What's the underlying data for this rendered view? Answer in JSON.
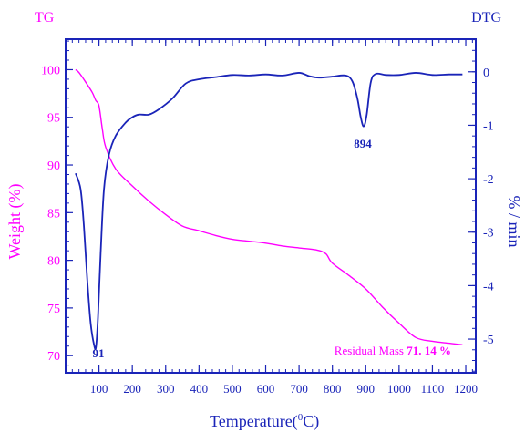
{
  "chart_data": {
    "type": "line",
    "labels": {
      "left_title": "TG",
      "right_title": "DTG",
      "xlabel": "Temperature(",
      "xlabel_sup": "0",
      "xlabel_end": "C)",
      "ylabel": "Weight (%)",
      "y2label": "% / min"
    },
    "annotations": {
      "dtg_peak1": "91",
      "dtg_peak2": "894",
      "residual_prefix": "Residual Mass ",
      "residual_value": "71. 14 %"
    },
    "x_axis": {
      "range": [
        0,
        1230
      ],
      "ticks": [
        100,
        200,
        300,
        400,
        500,
        600,
        700,
        800,
        900,
        1000,
        1100,
        1200
      ],
      "minor_step": 20
    },
    "y_axis_left": {
      "range": [
        68.2,
        103.2
      ],
      "ticks": [
        70,
        75,
        80,
        85,
        90,
        95,
        100
      ],
      "minor_step": 1
    },
    "y_axis_right": {
      "range": [
        -5.63,
        0.61
      ],
      "ticks": [
        0,
        -1,
        -2,
        -3,
        -4,
        -5
      ],
      "minor_step": 0.2
    },
    "colors": {
      "tg": "#ff00ff",
      "dtg": "#1a24b8",
      "text": "#111111"
    },
    "series": [
      {
        "name": "TG",
        "axis": "left",
        "color": "#ff00ff",
        "x": [
          30,
          40,
          60,
          80,
          90,
          100,
          110,
          120,
          150,
          200,
          250,
          300,
          350,
          400,
          450,
          500,
          550,
          600,
          650,
          700,
          750,
          780,
          800,
          850,
          900,
          950,
          1000,
          1050,
          1100,
          1150,
          1190
        ],
        "y": [
          100.0,
          99.7,
          98.7,
          97.6,
          96.8,
          96.2,
          93.8,
          91.9,
          89.6,
          87.8,
          86.2,
          84.8,
          83.6,
          83.1,
          82.6,
          82.2,
          82.0,
          81.8,
          81.5,
          81.3,
          81.1,
          80.7,
          79.7,
          78.4,
          77.0,
          75.1,
          73.4,
          71.9,
          71.5,
          71.3,
          71.14
        ]
      },
      {
        "name": "DTG",
        "axis": "right",
        "color": "#1a24b8",
        "x": [
          30,
          45,
          55,
          65,
          75,
          85,
          91,
          97,
          105,
          115,
          130,
          150,
          180,
          200,
          220,
          250,
          280,
          320,
          360,
          400,
          450,
          500,
          550,
          600,
          650,
          700,
          730,
          760,
          800,
          840,
          860,
          875,
          885,
          894,
          903,
          915,
          930,
          960,
          1000,
          1050,
          1100,
          1150,
          1190
        ],
        "y": [
          -1.9,
          -2.2,
          -2.9,
          -3.9,
          -4.7,
          -5.1,
          -5.15,
          -4.6,
          -3.4,
          -2.2,
          -1.55,
          -1.2,
          -0.95,
          -0.85,
          -0.8,
          -0.8,
          -0.7,
          -0.5,
          -0.22,
          -0.14,
          -0.1,
          -0.06,
          -0.07,
          -0.05,
          -0.07,
          -0.02,
          -0.08,
          -0.11,
          -0.09,
          -0.07,
          -0.18,
          -0.5,
          -0.85,
          -1.02,
          -0.8,
          -0.2,
          -0.04,
          -0.06,
          -0.06,
          -0.02,
          -0.06,
          -0.05,
          -0.05
        ]
      }
    ]
  }
}
